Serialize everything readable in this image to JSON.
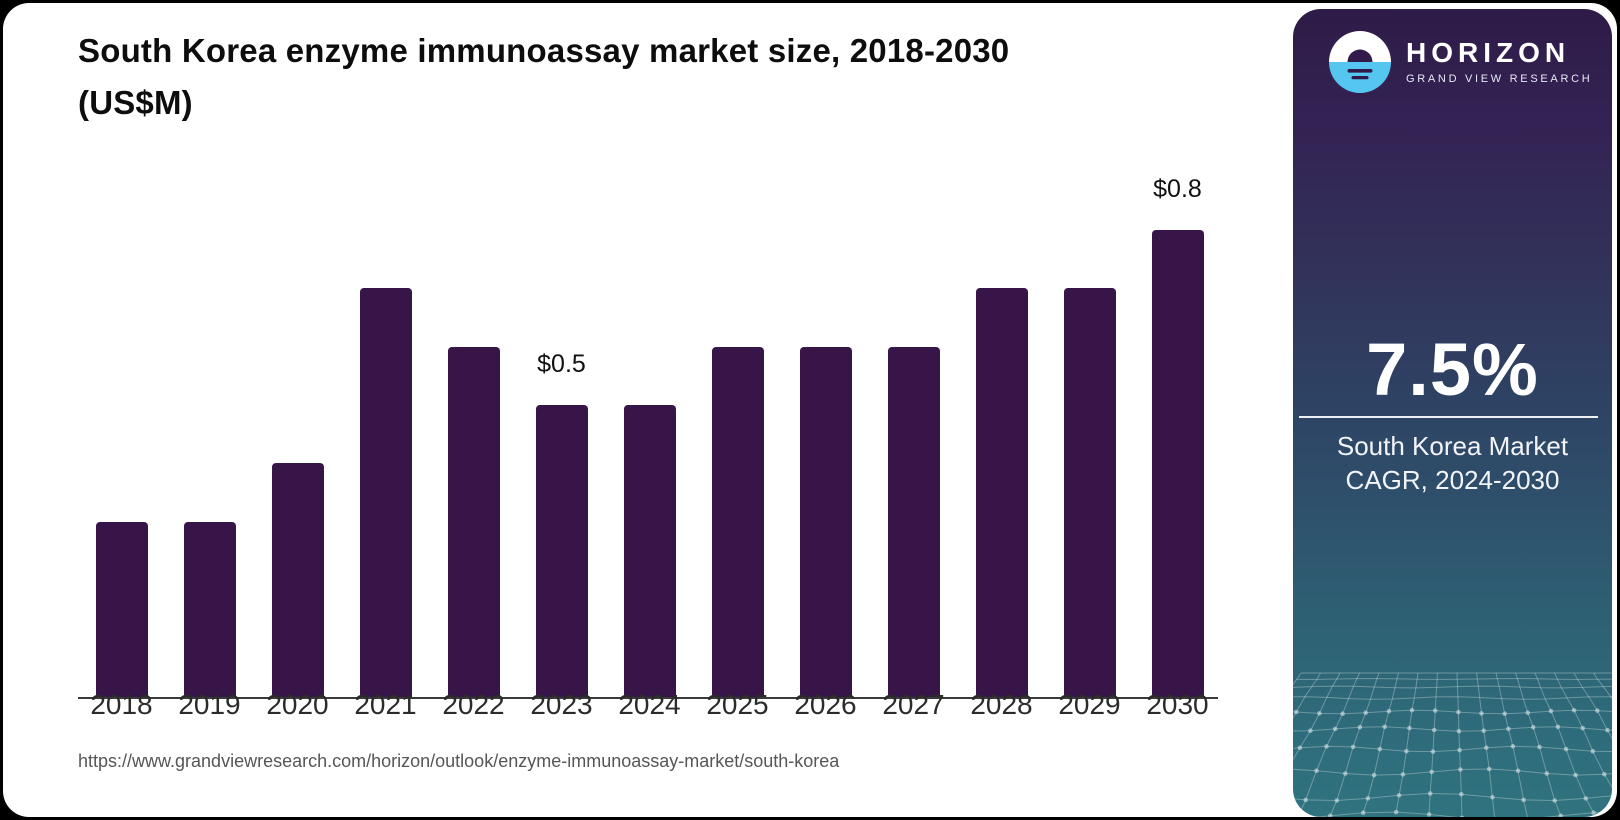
{
  "title": {
    "line1": "South Korea enzyme immunoassay market size, 2018-2030",
    "line2": "(US$M)"
  },
  "source_url": "https://www.grandviewresearch.com/horizon/outlook/enzyme-immunoassay-market/south-korea",
  "chart_data": {
    "type": "bar",
    "title": "South Korea enzyme immunoassay market size, 2018-2030 (US$M)",
    "unit": "US$M",
    "categories": [
      "2018",
      "2019",
      "2020",
      "2021",
      "2022",
      "2023",
      "2024",
      "2025",
      "2026",
      "2027",
      "2028",
      "2029",
      "2030"
    ],
    "values": [
      0.3,
      0.3,
      0.4,
      0.7,
      0.6,
      0.5,
      0.5,
      0.6,
      0.6,
      0.6,
      0.7,
      0.7,
      0.8
    ],
    "bar_labels": [
      "",
      "",
      "",
      "",
      "",
      "$0.5",
      "",
      "",
      "",
      "",
      "",
      "",
      "$0.8"
    ],
    "bar_color": "#371549",
    "axis_color": "#3a3a3a",
    "xlabel": "",
    "ylabel": "",
    "ylim": [
      0,
      0.88
    ],
    "grid": false,
    "legend": "none"
  },
  "sidebar": {
    "brand": {
      "name": "HORIZON",
      "tagline": "GRAND VIEW RESEARCH",
      "logo_icon": "horizon-sun-logo",
      "logo_blue": "#55c6f0",
      "logo_dark": "#321b4a"
    },
    "stat": {
      "value": "7.5%",
      "caption_line1": "South Korea Market",
      "caption_line2": "CAGR, 2024-2030"
    },
    "colors": {
      "gradient_top": "#2e1b47",
      "gradient_bottom": "#30737f"
    }
  }
}
